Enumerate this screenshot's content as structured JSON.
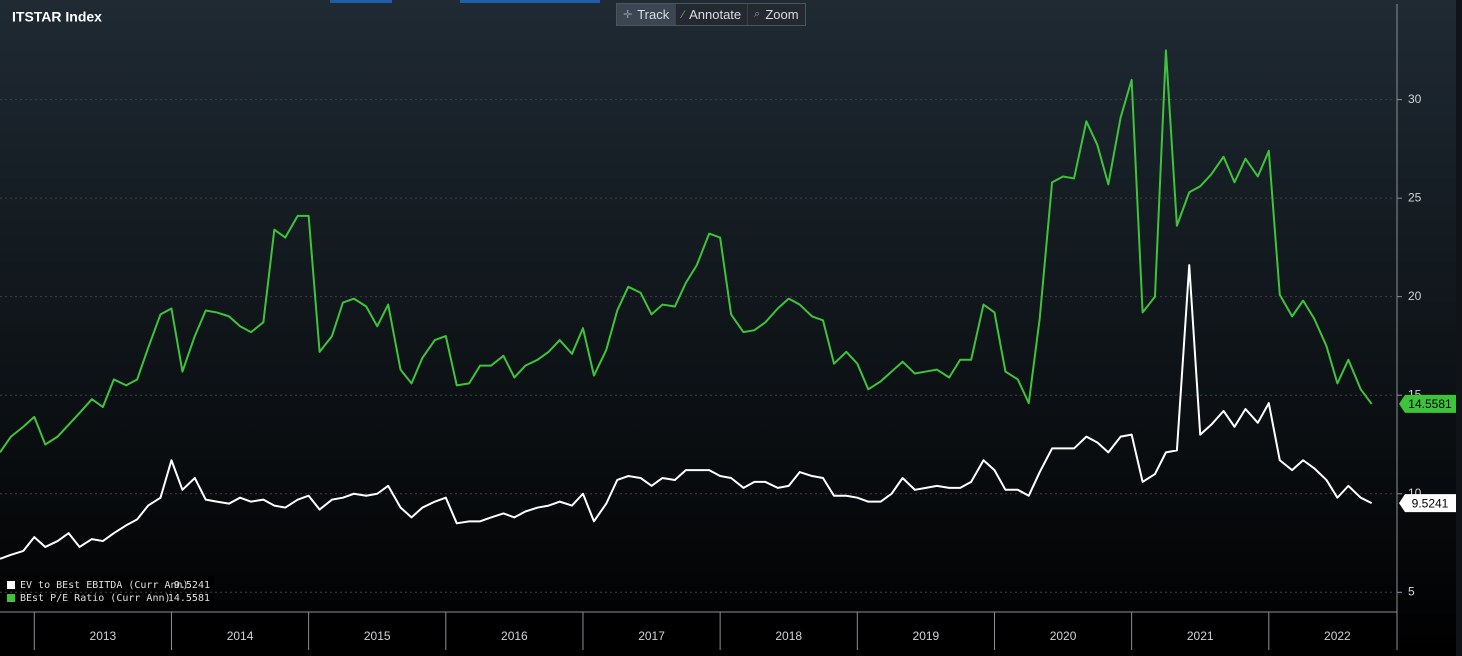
{
  "toolbar": [
    "Track",
    "Annotate",
    "Zoom"
  ],
  "chart_data": {
    "type": "line",
    "title": "ITSTAR Index",
    "x": [
      2012.75,
      2012.83,
      2012.92,
      2013,
      2013.08,
      2013.17,
      2013.25,
      2013.33,
      2013.42,
      2013.5,
      2013.58,
      2013.67,
      2013.75,
      2013.83,
      2013.92,
      2014,
      2014.08,
      2014.17,
      2014.25,
      2014.33,
      2014.42,
      2014.5,
      2014.58,
      2014.67,
      2014.75,
      2014.83,
      2014.92,
      2015,
      2015.08,
      2015.17,
      2015.25,
      2015.33,
      2015.42,
      2015.5,
      2015.58,
      2015.67,
      2015.75,
      2015.83,
      2015.92,
      2016,
      2016.08,
      2016.17,
      2016.25,
      2016.33,
      2016.42,
      2016.5,
      2016.58,
      2016.67,
      2016.75,
      2016.83,
      2016.92,
      2017,
      2017.08,
      2017.17,
      2017.25,
      2017.33,
      2017.42,
      2017.5,
      2017.58,
      2017.67,
      2017.75,
      2017.83,
      2017.92,
      2018,
      2018.08,
      2018.17,
      2018.25,
      2018.33,
      2018.42,
      2018.5,
      2018.58,
      2018.67,
      2018.75,
      2018.83,
      2018.92,
      2019,
      2019.08,
      2019.17,
      2019.25,
      2019.33,
      2019.42,
      2019.5,
      2019.58,
      2019.67,
      2019.75,
      2019.83,
      2019.92,
      2020,
      2020.08,
      2020.17,
      2020.25,
      2020.33,
      2020.42,
      2020.5,
      2020.58,
      2020.67,
      2020.75,
      2020.83,
      2020.92,
      2021,
      2021.08,
      2021.17,
      2021.25,
      2021.33,
      2021.42,
      2021.5,
      2021.58,
      2021.67,
      2021.75,
      2021.83,
      2021.92,
      2022,
      2022.08,
      2022.17,
      2022.25,
      2022.33,
      2022.42,
      2022.5,
      2022.58,
      2022.67,
      2022.75
    ],
    "xlim": [
      2012.75,
      2022.92
    ],
    "xticks": [
      2013,
      2014,
      2015,
      2016,
      2017,
      2018,
      2019,
      2020,
      2021,
      2022
    ],
    "ylim": [
      4,
      34.8
    ],
    "yticks": [
      5,
      10,
      15,
      20,
      25,
      30
    ],
    "grid": true,
    "series": [
      {
        "name": "EV to BEst EBITDA (Curr Ann)",
        "color": "#ffffff",
        "values": [
          6.7,
          6.9,
          7.1,
          7.8,
          7.3,
          7.6,
          8.0,
          7.3,
          7.7,
          7.6,
          8.0,
          8.4,
          8.7,
          9.4,
          9.8,
          11.7,
          10.2,
          10.8,
          9.7,
          9.6,
          9.5,
          9.8,
          9.6,
          9.7,
          9.4,
          9.3,
          9.7,
          9.9,
          9.2,
          9.7,
          9.8,
          10.0,
          9.9,
          10.0,
          10.4,
          9.3,
          8.8,
          9.3,
          9.6,
          9.8,
          8.5,
          8.6,
          8.6,
          8.8,
          9.0,
          8.8,
          9.1,
          9.3,
          9.4,
          9.6,
          9.4,
          10.0,
          8.6,
          9.5,
          10.7,
          10.9,
          10.8,
          10.4,
          10.8,
          10.7,
          11.2,
          11.2,
          11.2,
          10.9,
          10.8,
          10.3,
          10.6,
          10.6,
          10.3,
          10.4,
          11.1,
          10.9,
          10.8,
          9.9,
          9.9,
          9.8,
          9.6,
          9.6,
          10.0,
          10.8,
          10.2,
          10.3,
          10.4,
          10.3,
          10.3,
          10.6,
          11.7,
          11.2,
          10.2,
          10.2,
          9.9,
          11.1,
          12.3,
          12.3,
          12.3,
          12.9,
          12.6,
          12.1,
          12.9,
          13.0,
          10.6,
          11.0,
          12.1,
          12.2,
          21.6,
          13.0,
          13.5,
          14.2,
          13.4,
          14.3,
          13.6,
          14.6,
          11.7,
          11.2,
          11.7,
          11.3,
          10.7,
          9.8,
          10.4,
          9.8,
          9.5241
        ]
      },
      {
        "name": "BEst P/E Ratio (Curr Ann)",
        "color": "#3ec43a",
        "values": [
          12.1,
          12.9,
          13.4,
          13.9,
          12.5,
          12.9,
          13.5,
          14.1,
          14.8,
          14.4,
          15.8,
          15.5,
          15.8,
          17.4,
          19.1,
          19.4,
          16.2,
          18.0,
          19.3,
          19.2,
          19.0,
          18.5,
          18.2,
          18.7,
          23.4,
          23.0,
          24.1,
          24.1,
          17.2,
          18.0,
          19.7,
          19.9,
          19.5,
          18.5,
          19.6,
          16.3,
          15.6,
          16.9,
          17.8,
          18.0,
          15.5,
          15.6,
          16.5,
          16.5,
          17.0,
          15.9,
          16.5,
          16.8,
          17.2,
          17.8,
          17.1,
          18.4,
          16.0,
          17.3,
          19.3,
          20.5,
          20.2,
          19.1,
          19.6,
          19.5,
          20.7,
          21.6,
          23.2,
          23.0,
          19.1,
          18.2,
          18.3,
          18.7,
          19.4,
          19.9,
          19.6,
          19.0,
          18.8,
          16.6,
          17.2,
          16.6,
          15.3,
          15.7,
          16.2,
          16.7,
          16.1,
          16.2,
          16.3,
          15.9,
          16.8,
          16.8,
          19.6,
          19.2,
          16.2,
          15.8,
          14.6,
          18.9,
          25.8,
          26.1,
          26.0,
          28.9,
          27.7,
          25.7,
          29.1,
          31.0,
          19.2,
          20.0,
          32.5,
          23.6,
          25.3,
          25.6,
          26.2,
          27.1,
          25.8,
          27.0,
          26.1,
          27.4,
          20.1,
          19.0,
          19.8,
          18.9,
          17.5,
          15.6,
          16.8,
          15.3,
          14.5581
        ]
      }
    ]
  }
}
